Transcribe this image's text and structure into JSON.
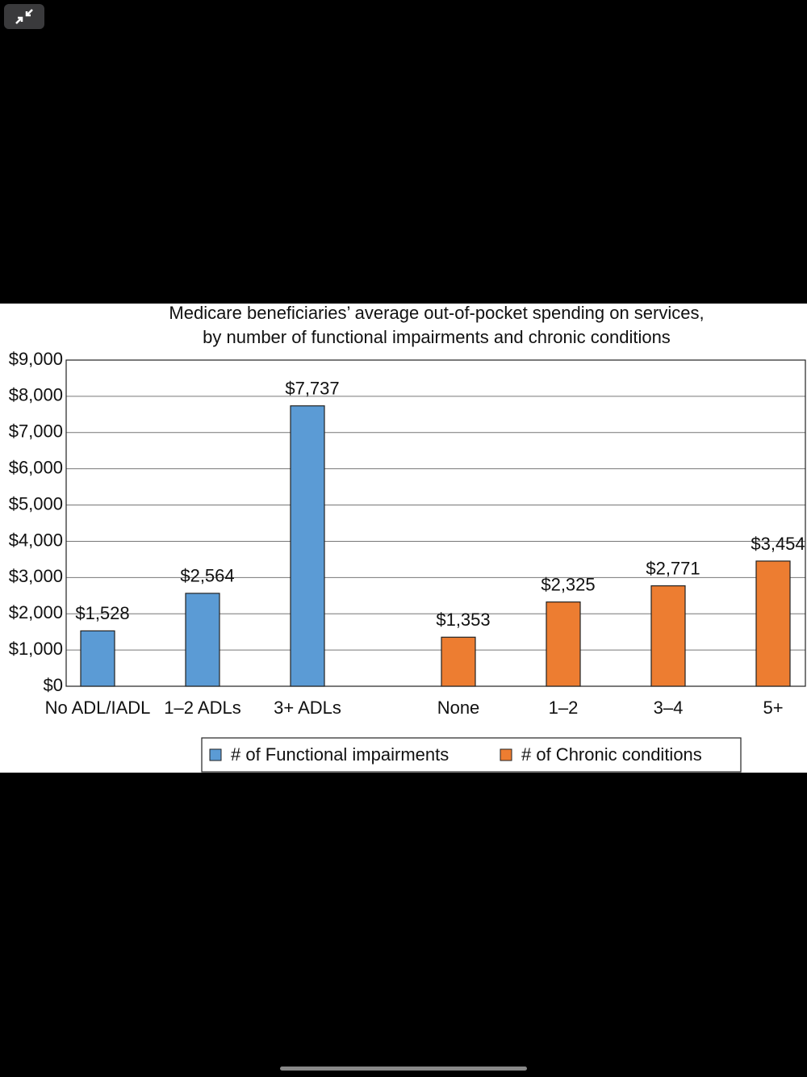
{
  "chart_data": {
    "type": "bar",
    "title": [
      "Medicare beneficiaries’ average out-of-pocket spending on services,",
      "by number of functional impairments and chronic conditions"
    ],
    "categories": [
      "No ADL/IADL",
      "1–2 ADLs",
      "3+ ADLs",
      "None",
      "1–2",
      "3–4",
      "5+"
    ],
    "series": [
      {
        "name": "# of Functional impairments",
        "color": "#5b9bd5",
        "values": [
          1528,
          2564,
          7737,
          null,
          null,
          null,
          null
        ],
        "value_labels": [
          "$1,528",
          "$2,564",
          "$7,737",
          null,
          null,
          null,
          null
        ]
      },
      {
        "name": "# of Chronic conditions",
        "color": "#ed7d31",
        "values": [
          null,
          null,
          null,
          1353,
          2325,
          2771,
          3454
        ],
        "value_labels": [
          null,
          null,
          null,
          "$1,353",
          "$2,325",
          "$2,771",
          "$3,454"
        ]
      }
    ],
    "ylim": [
      0,
      9000
    ],
    "yticks": [
      {
        "value": 0,
        "label": "$0"
      },
      {
        "value": 1000,
        "label": "$1,000"
      },
      {
        "value": 2000,
        "label": "$2,000"
      },
      {
        "value": 3000,
        "label": "$3,000"
      },
      {
        "value": 4000,
        "label": "$4,000"
      },
      {
        "value": 5000,
        "label": "$5,000"
      },
      {
        "value": 6000,
        "label": "$6,000"
      },
      {
        "value": 7000,
        "label": "$7,000"
      },
      {
        "value": 8000,
        "label": "$8,000"
      },
      {
        "value": 9000,
        "label": "$9,000"
      }
    ],
    "grid": true,
    "legend": "bottom"
  }
}
